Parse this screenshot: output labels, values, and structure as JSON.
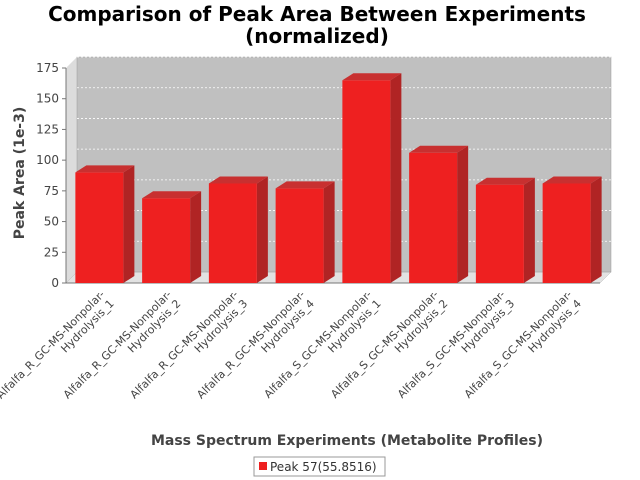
{
  "chart_data": {
    "type": "bar",
    "title_line1": "Comparison of Peak Area Between Experiments",
    "title_line2": "(normalized)",
    "xlabel": "Mass Spectrum Experiments (Metabolite Profiles)",
    "ylabel": "Peak Area (1e-3)",
    "ylim": [
      0,
      175
    ],
    "yticks": [
      0,
      25,
      50,
      75,
      100,
      125,
      150,
      175
    ],
    "grid": true,
    "legend_position": "bottom-center",
    "categories": [
      [
        "Alfalfa_R_GC-MS-Nonpolar-",
        "Hydrolysis_1"
      ],
      [
        "Alfalfa_R_GC-MS-Nonpolar-",
        "Hydrolysis_2"
      ],
      [
        "Alfalfa_R_GC-MS-Nonpolar-",
        "Hydrolysis_3"
      ],
      [
        "Alfalfa_R_GC-MS-Nonpolar-",
        "Hydrolysis_4"
      ],
      [
        "Alfalfa_S_GC-MS-Nonpolar-",
        "Hydrolysis_1"
      ],
      [
        "Alfalfa_S_GC-MS-Nonpolar-",
        "Hydrolysis_2"
      ],
      [
        "Alfalfa_S_GC-MS-Nonpolar-",
        "Hydrolysis_3"
      ],
      [
        "Alfalfa_S_GC-MS-Nonpolar-",
        "Hydrolysis_4"
      ]
    ],
    "series": [
      {
        "name": "Peak 57(55.8516)",
        "color": "#ee2020",
        "values": [
          90,
          69,
          81,
          77,
          165,
          106,
          80,
          81
        ]
      }
    ],
    "plot_background": "#c0c0c0"
  }
}
